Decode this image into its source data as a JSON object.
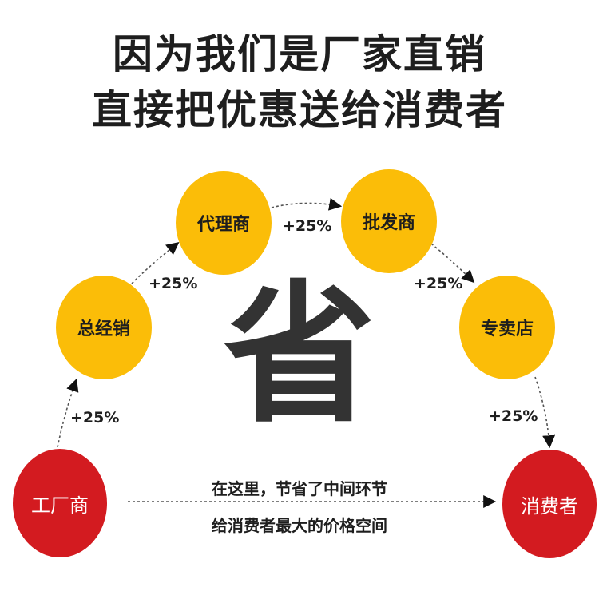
{
  "title": {
    "line1": "因为我们是厂家直销",
    "line2": "直接把优惠送给消费者"
  },
  "nodes": {
    "factory": "工厂商",
    "general_distributor": "总经销",
    "agent": "代理商",
    "wholesaler": "批发商",
    "store": "专卖店",
    "consumer": "消费者"
  },
  "markups": [
    "+25%",
    "+25%",
    "+25%",
    "+25%",
    "+25%"
  ],
  "center_char": "省",
  "note": {
    "line1": "在这里，节省了中间环节",
    "line2": "给消费者最大的价格空间"
  },
  "colors": {
    "intermediary": "#fbbd08",
    "endpoint": "#d31b20",
    "text": "#1e1e1e"
  }
}
